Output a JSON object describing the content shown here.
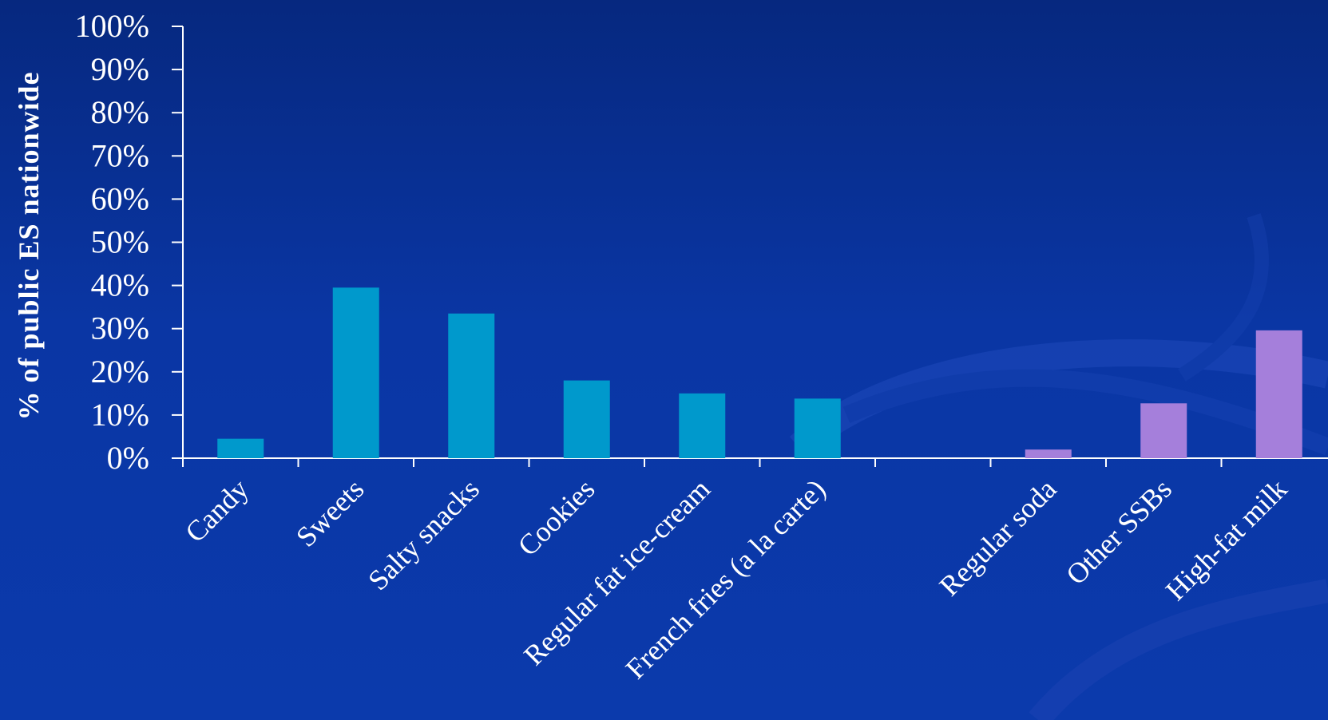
{
  "chart_data": {
    "type": "bar",
    "ylabel": "% of public ES nationwide",
    "xlabel": "",
    "ylim": [
      0,
      100
    ],
    "yticks": [
      "0%",
      "10%",
      "20%",
      "30%",
      "40%",
      "50%",
      "60%",
      "70%",
      "80%",
      "90%",
      "100%"
    ],
    "grid": false,
    "categories": [
      "Candy",
      "Sweets",
      "Salty snacks",
      "Cookies",
      "Regular fat ice-cream",
      "French fries (a la carte)",
      "",
      "Regular soda",
      "Other SSBs",
      "High-fat milk"
    ],
    "values": [
      4.5,
      39.5,
      33.5,
      18,
      15,
      13.8,
      null,
      2,
      12.7,
      29.6
    ],
    "bar_colors": [
      "#0099cc",
      "#0099cc",
      "#0099cc",
      "#0099cc",
      "#0099cc",
      "#0099cc",
      null,
      "#a57fdb",
      "#a57fdb",
      "#a57fdb"
    ]
  },
  "colors": {
    "axis": "#ffffff",
    "food_bars": "#0099cc",
    "beverage_bars": "#a57fdb"
  }
}
